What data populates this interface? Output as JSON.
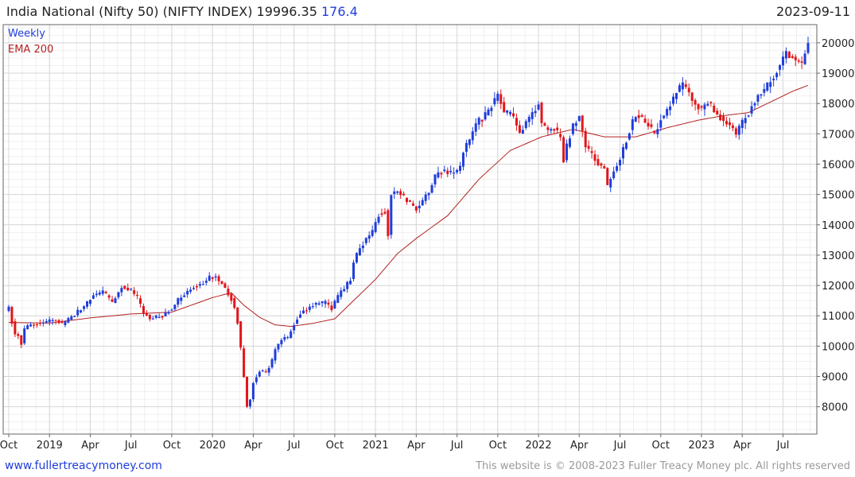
{
  "header": {
    "title": "India National (Nifty 50) (NIFTY INDEX) 19996.35",
    "change": "176.4",
    "date": "2023-09-11"
  },
  "footer": {
    "site": "www.fullertreacymoney.com",
    "copyright": "This website is © 2008-2023 Fuller Treacy Money plc. All rights reserved"
  },
  "colors": {
    "up": "#1f3ddb",
    "down": "#e0161b",
    "ema": "#b22222",
    "grid": "#e3e3e3"
  },
  "chart_data": {
    "type": "candlestick",
    "title": "India National (Nifty 50) (NIFTY INDEX)",
    "frequency": "Weekly",
    "legend": [
      {
        "label": "Weekly",
        "color": "#1f3ddb"
      },
      {
        "label": "EMA 200",
        "color": "#b22222"
      }
    ],
    "ylim": [
      7100,
      20600
    ],
    "y_ticks": [
      8000,
      9000,
      10000,
      11000,
      12000,
      13000,
      14000,
      15000,
      16000,
      17000,
      18000,
      19000,
      20000
    ],
    "x_ticks": [
      {
        "t": 0,
        "label": "Oct"
      },
      {
        "t": 13,
        "label": "2019"
      },
      {
        "t": 26,
        "label": "Apr"
      },
      {
        "t": 39,
        "label": "Jul"
      },
      {
        "t": 52,
        "label": "Oct"
      },
      {
        "t": 65,
        "label": "2020"
      },
      {
        "t": 78,
        "label": "Apr"
      },
      {
        "t": 91,
        "label": "Jul"
      },
      {
        "t": 104,
        "label": "Oct"
      },
      {
        "t": 117,
        "label": "2021"
      },
      {
        "t": 130,
        "label": "Apr"
      },
      {
        "t": 143,
        "label": "Jul"
      },
      {
        "t": 156,
        "label": "Oct"
      },
      {
        "t": 169,
        "label": "2022"
      },
      {
        "t": 182,
        "label": "Apr"
      },
      {
        "t": 195,
        "label": "Jul"
      },
      {
        "t": 208,
        "label": "Oct"
      },
      {
        "t": 221,
        "label": "2023"
      },
      {
        "t": 234,
        "label": "Apr"
      },
      {
        "t": 247,
        "label": "Jul"
      }
    ],
    "close_anchors": [
      [
        0,
        11300
      ],
      [
        1,
        10800
      ],
      [
        2,
        10400
      ],
      [
        3,
        10350
      ],
      [
        4,
        10100
      ],
      [
        5,
        10550
      ],
      [
        6,
        10650
      ],
      [
        7,
        10700
      ],
      [
        8,
        10700
      ],
      [
        9,
        10750
      ],
      [
        12,
        10800
      ],
      [
        15,
        10850
      ],
      [
        17,
        10700
      ],
      [
        19,
        10900
      ],
      [
        21,
        11050
      ],
      [
        24,
        11300
      ],
      [
        27,
        11650
      ],
      [
        30,
        11800
      ],
      [
        33,
        11450
      ],
      [
        36,
        11950
      ],
      [
        39,
        11850
      ],
      [
        41,
        11600
      ],
      [
        43,
        11100
      ],
      [
        45,
        10900
      ],
      [
        47,
        10950
      ],
      [
        49,
        11000
      ],
      [
        52,
        11250
      ],
      [
        55,
        11650
      ],
      [
        58,
        11900
      ],
      [
        61,
        12050
      ],
      [
        64,
        12250
      ],
      [
        66,
        12300
      ],
      [
        69,
        11900
      ],
      [
        71,
        11550
      ],
      [
        72,
        11250
      ],
      [
        73,
        10800
      ],
      [
        74,
        9950
      ],
      [
        75,
        9000
      ],
      [
        76,
        8000
      ],
      [
        77,
        8250
      ],
      [
        78,
        8800
      ],
      [
        80,
        9200
      ],
      [
        82,
        9100
      ],
      [
        84,
        9550
      ],
      [
        85,
        9900
      ],
      [
        87,
        10200
      ],
      [
        89,
        10300
      ],
      [
        91,
        10750
      ],
      [
        93,
        11100
      ],
      [
        95,
        11200
      ],
      [
        97,
        11350
      ],
      [
        99,
        11400
      ],
      [
        101,
        11450
      ],
      [
        103,
        11250
      ],
      [
        105,
        11650
      ],
      [
        107,
        11900
      ],
      [
        109,
        12200
      ],
      [
        110,
        12750
      ],
      [
        112,
        13250
      ],
      [
        114,
        13500
      ],
      [
        116,
        13750
      ],
      [
        118,
        14350
      ],
      [
        120,
        14450
      ],
      [
        121,
        13650
      ],
      [
        122,
        15000
      ],
      [
        124,
        15150
      ],
      [
        126,
        14900
      ],
      [
        128,
        14700
      ],
      [
        130,
        14550
      ],
      [
        132,
        14800
      ],
      [
        134,
        15100
      ],
      [
        136,
        15600
      ],
      [
        138,
        15750
      ],
      [
        140,
        15750
      ],
      [
        142,
        15700
      ],
      [
        144,
        15900
      ],
      [
        145,
        16450
      ],
      [
        147,
        16800
      ],
      [
        149,
        17350
      ],
      [
        151,
        17500
      ],
      [
        153,
        17800
      ],
      [
        155,
        18100
      ],
      [
        156,
        18350
      ],
      [
        158,
        17700
      ],
      [
        160,
        17650
      ],
      [
        162,
        17300
      ],
      [
        163,
        17000
      ],
      [
        165,
        17400
      ],
      [
        167,
        17650
      ],
      [
        169,
        18050
      ],
      [
        170,
        17300
      ],
      [
        172,
        17150
      ],
      [
        174,
        17200
      ],
      [
        176,
        16850
      ],
      [
        177,
        16150
      ],
      [
        178,
        16600
      ],
      [
        180,
        17300
      ],
      [
        182,
        17600
      ],
      [
        183,
        17100
      ],
      [
        184,
        16600
      ],
      [
        186,
        16300
      ],
      [
        188,
        16000
      ],
      [
        190,
        15850
      ],
      [
        191,
        15250
      ],
      [
        193,
        15800
      ],
      [
        195,
        16200
      ],
      [
        197,
        16800
      ],
      [
        199,
        17400
      ],
      [
        200,
        17650
      ],
      [
        202,
        17500
      ],
      [
        204,
        17300
      ],
      [
        206,
        17000
      ],
      [
        208,
        17500
      ],
      [
        210,
        17800
      ],
      [
        212,
        18200
      ],
      [
        214,
        18500
      ],
      [
        215,
        18600
      ],
      [
        217,
        18350
      ],
      [
        219,
        17950
      ],
      [
        221,
        17850
      ],
      [
        223,
        18050
      ],
      [
        225,
        17800
      ],
      [
        227,
        17550
      ],
      [
        229,
        17350
      ],
      [
        231,
        17150
      ],
      [
        232,
        16950
      ],
      [
        234,
        17400
      ],
      [
        236,
        17700
      ],
      [
        238,
        18100
      ],
      [
        240,
        18350
      ],
      [
        242,
        18600
      ],
      [
        244,
        18900
      ],
      [
        246,
        19300
      ],
      [
        248,
        19700
      ],
      [
        249,
        19600
      ],
      [
        251,
        19450
      ],
      [
        253,
        19300
      ],
      [
        254,
        19650
      ],
      [
        255,
        19996
      ]
    ],
    "ema200_anchors": [
      [
        0,
        10780
      ],
      [
        13,
        10760
      ],
      [
        26,
        10930
      ],
      [
        39,
        11060
      ],
      [
        52,
        11120
      ],
      [
        65,
        11600
      ],
      [
        71,
        11760
      ],
      [
        75,
        11350
      ],
      [
        80,
        10950
      ],
      [
        85,
        10700
      ],
      [
        90,
        10650
      ],
      [
        97,
        10750
      ],
      [
        104,
        10900
      ],
      [
        110,
        11500
      ],
      [
        117,
        12200
      ],
      [
        124,
        13050
      ],
      [
        130,
        13550
      ],
      [
        140,
        14300
      ],
      [
        150,
        15500
      ],
      [
        160,
        16450
      ],
      [
        170,
        16900
      ],
      [
        180,
        17150
      ],
      [
        190,
        16900
      ],
      [
        200,
        16900
      ],
      [
        210,
        17200
      ],
      [
        220,
        17450
      ],
      [
        228,
        17600
      ],
      [
        236,
        17700
      ],
      [
        244,
        18100
      ],
      [
        250,
        18400
      ],
      [
        255,
        18600
      ]
    ]
  }
}
